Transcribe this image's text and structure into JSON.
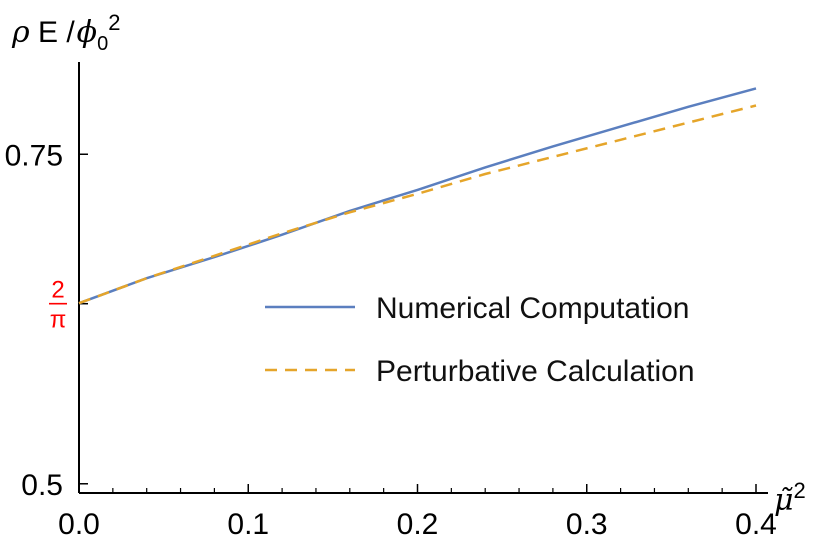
{
  "chart_data": {
    "type": "line",
    "ylabel": {
      "prefix_symbol": "ρ",
      "middle": " E /",
      "phi_symbol": "ϕ",
      "subscript": "0",
      "superscript": "2"
    },
    "xlabel": {
      "symbol": "μ̃",
      "superscript": "2"
    },
    "xlim": [
      0.0,
      0.4
    ],
    "ylim": [
      0.493,
      0.82
    ],
    "x_ticks": [
      0.0,
      0.1,
      0.2,
      0.3,
      0.4
    ],
    "x_tick_labels": [
      "0.0",
      "0.1",
      "0.2",
      "0.3",
      "0.4"
    ],
    "y_ticks": [
      0.5,
      0.75
    ],
    "y_tick_labels": [
      "0.5",
      "0.75"
    ],
    "special_y_tick": {
      "value": 0.63662,
      "numerator": "2",
      "denominator": "π",
      "color": "#ff0000"
    },
    "grid": false,
    "legend_placement": "center-right",
    "series": [
      {
        "name": "Numerical Computation",
        "color": "#5b7fbf",
        "style": "solid",
        "x": [
          0.0,
          0.04,
          0.08,
          0.12,
          0.16,
          0.2,
          0.24,
          0.28,
          0.32,
          0.36,
          0.4
        ],
        "y": [
          0.637,
          0.656,
          0.672,
          0.689,
          0.707,
          0.723,
          0.74,
          0.756,
          0.771,
          0.786,
          0.8
        ]
      },
      {
        "name": "Perturbative Calculation",
        "color": "#e5a52a",
        "style": "dashed",
        "x": [
          0.0,
          0.04,
          0.08,
          0.12,
          0.16,
          0.2,
          0.24,
          0.28,
          0.32,
          0.36,
          0.4
        ],
        "y": [
          0.637,
          0.656,
          0.673,
          0.69,
          0.706,
          0.72,
          0.735,
          0.748,
          0.761,
          0.774,
          0.787
        ]
      }
    ]
  }
}
